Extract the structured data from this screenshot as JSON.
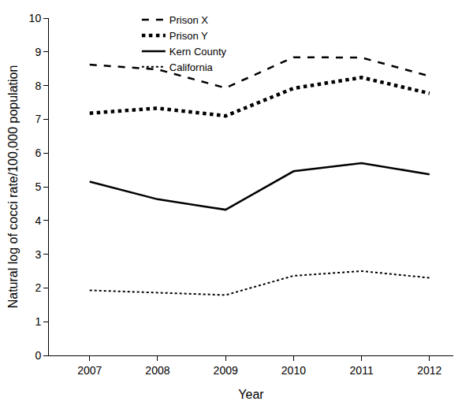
{
  "chart_data": {
    "type": "line",
    "x": [
      2007,
      2008,
      2009,
      2010,
      2011,
      2012
    ],
    "series": [
      {
        "name": "Prison X",
        "color": "#000000",
        "line_style": "dash",
        "values": [
          8.62,
          8.48,
          7.93,
          8.84,
          8.83,
          8.28
        ]
      },
      {
        "name": "Prison Y",
        "color": "#000000",
        "line_style": "dot",
        "values": [
          7.18,
          7.33,
          7.1,
          7.92,
          8.24,
          7.77
        ]
      },
      {
        "name": "Kern County",
        "color": "#000000",
        "line_style": "solid",
        "values": [
          5.15,
          4.63,
          4.32,
          5.46,
          5.7,
          5.37
        ]
      },
      {
        "name": "California",
        "color": "#000000",
        "line_style": "dot",
        "values": [
          1.93,
          1.86,
          1.79,
          2.36,
          2.5,
          2.3
        ]
      }
    ],
    "xlabel": "Year",
    "ylabel": "Natural log of cocci rate/100,000 population",
    "xlim": [
      2006.4,
      2012.35
    ],
    "xticks": [
      2007,
      2008,
      2009,
      2010,
      2011,
      2012
    ],
    "ylim": [
      0,
      10
    ],
    "yticks": [
      0,
      1,
      2,
      3,
      4,
      5,
      6,
      7,
      8,
      9,
      10
    ],
    "grid": false,
    "legend": "top"
  }
}
